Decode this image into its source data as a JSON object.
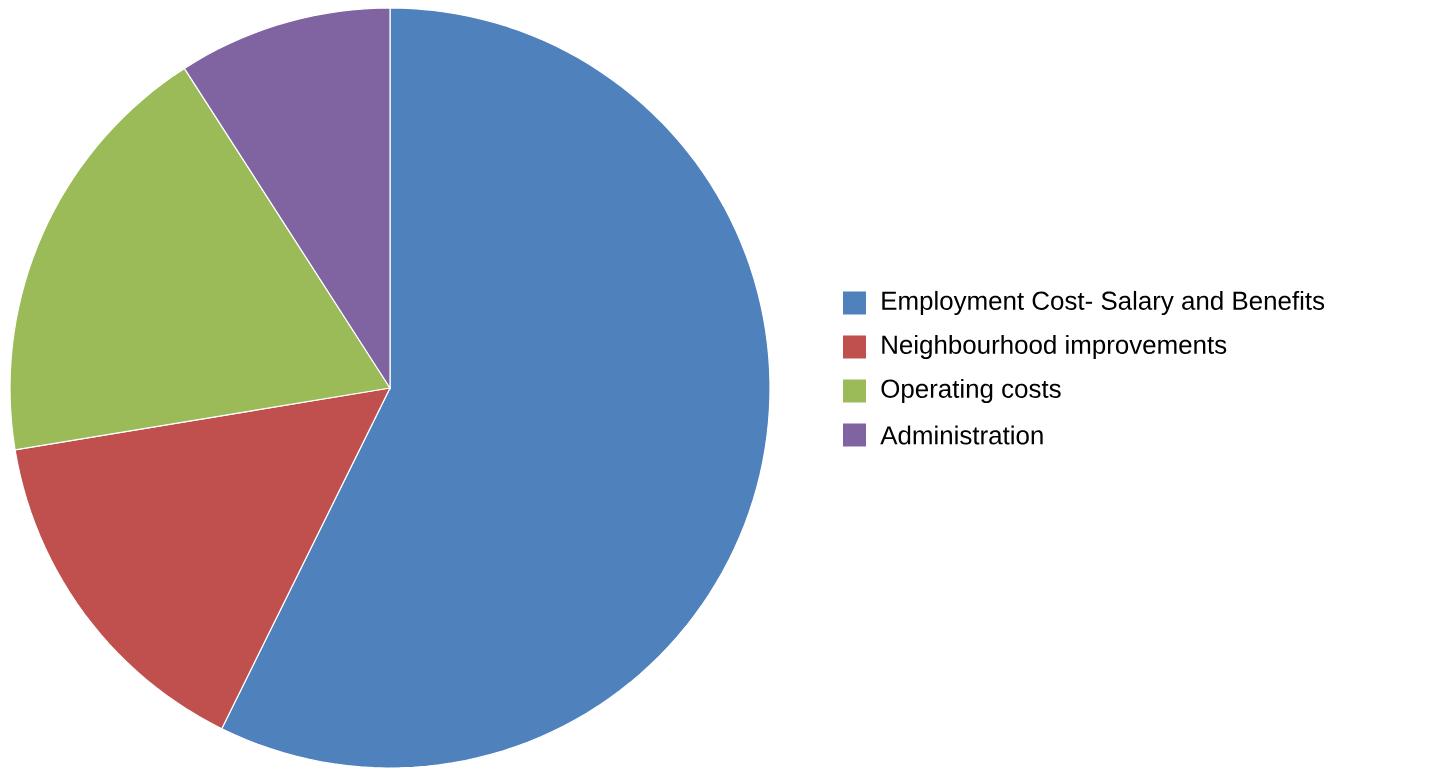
{
  "chart_data": {
    "type": "pie",
    "categories": [
      "Employment Cost- Salary and Benefits",
      "Neighbourhood improvements",
      "Operating costs",
      "Administration"
    ],
    "values": [
      57.3,
      15.1,
      18.5,
      9.1
    ],
    "colors": [
      "#4f81bd",
      "#c0504d",
      "#9bbb59",
      "#8064a2"
    ],
    "legend": "right"
  }
}
